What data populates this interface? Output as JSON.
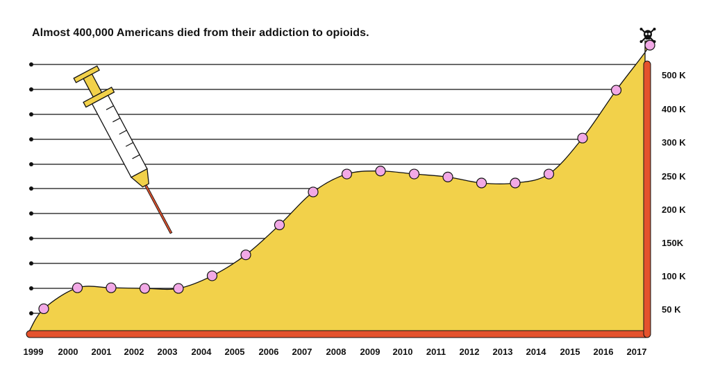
{
  "title": "Almost 400,000 Americans died from their addiction to opioids.",
  "icons": {
    "corner": "skull-crossbones-icon",
    "decoration": "syringe-icon"
  },
  "colors": {
    "area": "#f2d14a",
    "points": "#f2a9e6",
    "axis": "#e4522d",
    "grid": "#111111"
  },
  "chart_data": {
    "type": "area",
    "title": "Almost 400,000 Americans died from their addiction to opioids.",
    "xlabel": "",
    "ylabel": "",
    "x": [
      "1999",
      "2000",
      "2001",
      "2002",
      "2003",
      "2004",
      "2005",
      "2006",
      "2007",
      "2008",
      "2009",
      "2010",
      "2011",
      "2012",
      "2013",
      "2014",
      "2015",
      "2016",
      "2017"
    ],
    "values": [
      8000,
      15000,
      15000,
      14800,
      14800,
      19000,
      26000,
      36000,
      47000,
      53000,
      54000,
      53000,
      52000,
      50000,
      50000,
      53000,
      65000,
      81000,
      96000
    ],
    "y_tick_labels": [
      "50 K",
      "100 K",
      "150K",
      "200 K",
      "250 K",
      "300 K",
      "400 K",
      "500 K"
    ],
    "grid": true
  }
}
